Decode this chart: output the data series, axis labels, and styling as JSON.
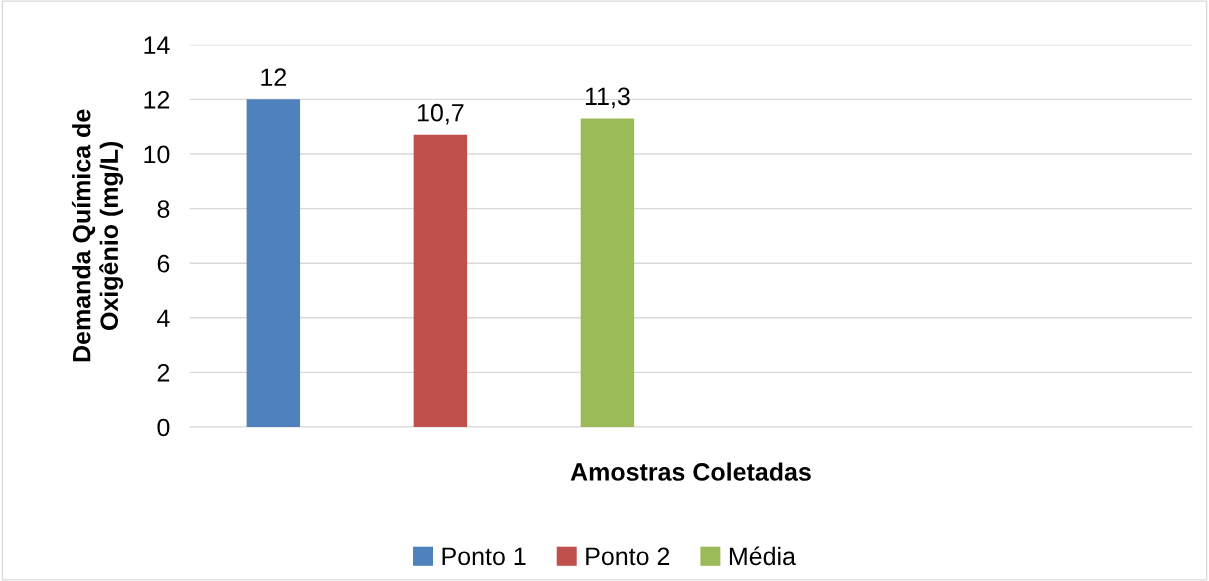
{
  "chart_data": {
    "type": "bar",
    "xlabel": "Amostras Coletadas",
    "ylabel": "Demanda Química de\nOxigênio (mg/L)",
    "categories": [
      null,
      null,
      null,
      null,
      null,
      null
    ],
    "series": [
      {
        "name": "Ponto 1",
        "color": "#4f81bd",
        "values": [
          12,
          null,
          null,
          null,
          null,
          null
        ],
        "value_labels": [
          "12",
          null,
          null,
          null,
          null,
          null
        ]
      },
      {
        "name": "Ponto 2",
        "color": "#c0504d",
        "values": [
          null,
          10.7,
          null,
          null,
          null,
          null
        ],
        "value_labels": [
          null,
          "10,7",
          null,
          null,
          null,
          null
        ]
      },
      {
        "name": "Média",
        "color": "#9bbb59",
        "values": [
          null,
          null,
          11.3,
          null,
          null,
          null
        ],
        "value_labels": [
          null,
          null,
          "11,3",
          null,
          null,
          null
        ]
      }
    ],
    "ylim": [
      0,
      14
    ],
    "yticks": [
      0,
      2,
      4,
      6,
      8,
      10,
      12,
      14
    ],
    "grid": "y",
    "legend": "bottom"
  }
}
